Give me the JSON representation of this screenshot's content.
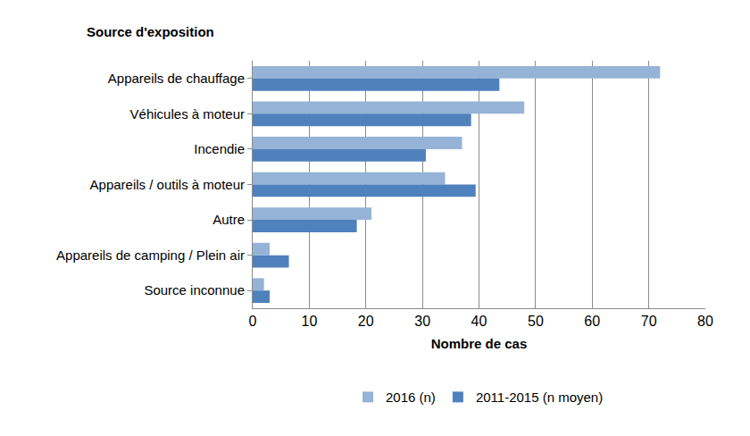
{
  "chart_data": {
    "type": "bar",
    "orientation": "horizontal",
    "y_label": "Source d'exposition",
    "x_label": "Nombre de cas",
    "categories": [
      "Appareils de chauffage",
      "Véhicules à moteur",
      "Incendie",
      "Appareils / outils à moteur",
      "Autre",
      "Appareils de camping / Plein air",
      "Source inconnue"
    ],
    "series": [
      {
        "name": "2016 (n)",
        "color": "#95b3d7",
        "values": [
          72,
          48,
          37,
          34,
          21,
          3,
          2
        ]
      },
      {
        "name": "2011-2015 (n moyen)",
        "color": "#4f81bd",
        "values": [
          43.6,
          38.6,
          30.6,
          39.4,
          18.4,
          6.4,
          3.0
        ]
      }
    ],
    "xlim": [
      0,
      80
    ],
    "xticks": [
      0,
      10,
      20,
      30,
      40,
      50,
      60,
      70,
      80
    ],
    "grid": true,
    "legend": "bottom"
  }
}
